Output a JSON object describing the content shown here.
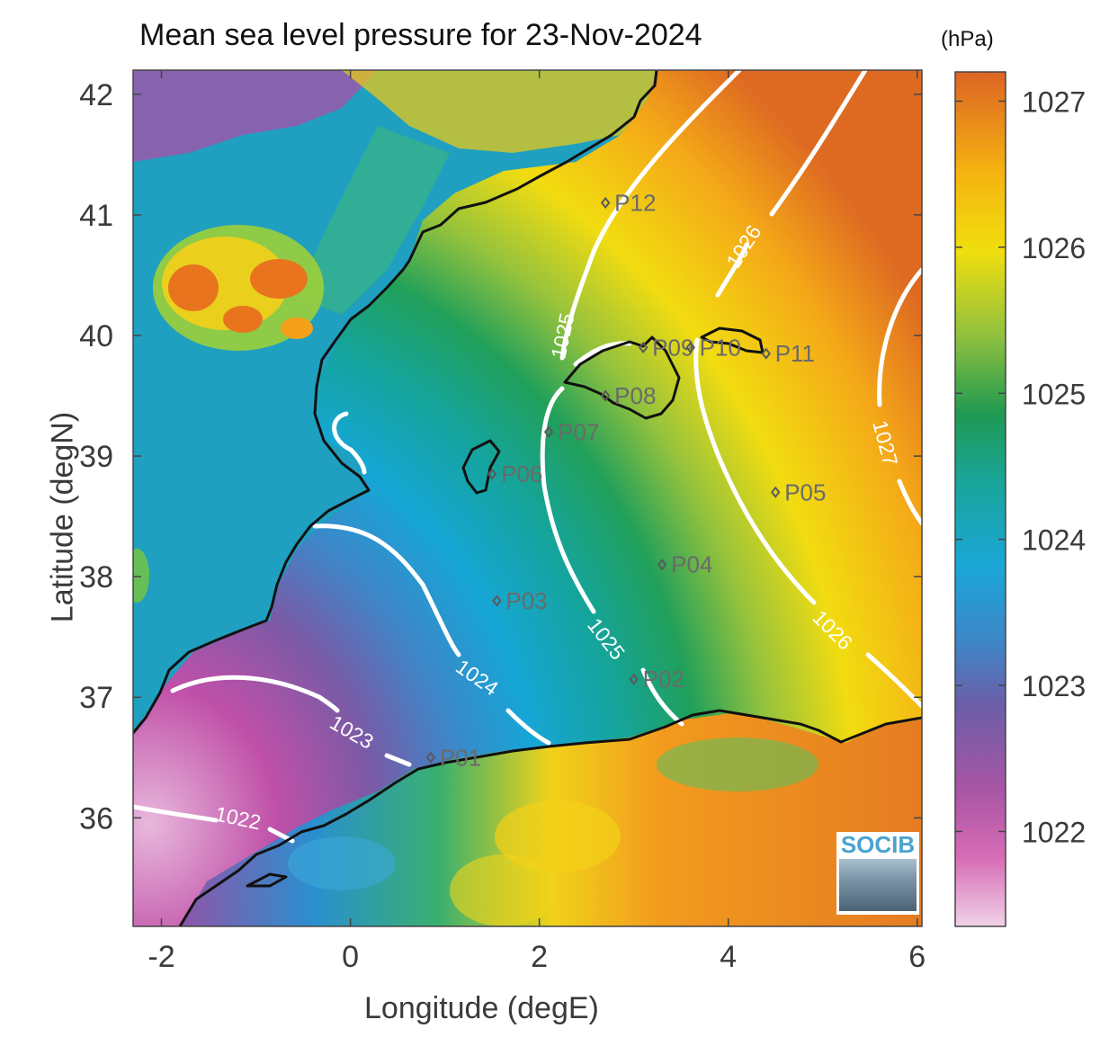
{
  "title": "Mean sea level pressure for 23-Nov-2024",
  "colorbar_unit": "(hPa)",
  "xlabel": "Longitude (degE)",
  "ylabel": "Latitude (degN)",
  "logo_text": "SOCIB",
  "chart_data": {
    "type": "map",
    "xlim": [
      -2.3,
      6.05
    ],
    "ylim": [
      35.1,
      42.2
    ],
    "x_ticks": [
      -2,
      0,
      2,
      4,
      6
    ],
    "y_ticks": [
      36,
      37,
      38,
      39,
      40,
      41,
      42
    ],
    "colorbar": {
      "range": [
        1021.35,
        1027.2
      ],
      "ticks": [
        1022,
        1023,
        1024,
        1025,
        1026,
        1027
      ],
      "colormap": [
        "#ecc8e4",
        "#c04fa8",
        "#7a5aa8",
        "#4a86c8",
        "#1ea7d8",
        "#1aa5a0",
        "#22a15a",
        "#9cc43a",
        "#f2dc10",
        "#f7c00c",
        "#f0901c",
        "#dc6420"
      ]
    },
    "contour_levels": [
      1022,
      1023,
      1024,
      1025,
      1026,
      1027
    ],
    "contour_label_positions": [
      {
        "level": "1022",
        "lon": -1.0,
        "lat": 35.93
      },
      {
        "level": "1023",
        "lon": 0.1,
        "lat": 36.7
      },
      {
        "level": "1024",
        "lon": 1.55,
        "lat": 37.2
      },
      {
        "level": "1025",
        "lon": 3.0,
        "lat": 37.6
      },
      {
        "level": "1025",
        "lon": 2.4,
        "lat": 40.0
      },
      {
        "level": "1026",
        "lon": 5.0,
        "lat": 37.55
      },
      {
        "level": "1026",
        "lon": 4.35,
        "lat": 40.8
      },
      {
        "level": "1027",
        "lon": 5.7,
        "lat": 38.95
      }
    ],
    "points": [
      {
        "name": "P01",
        "lon": 0.85,
        "lat": 36.5
      },
      {
        "name": "P02",
        "lon": 3.0,
        "lat": 37.15
      },
      {
        "name": "P03",
        "lon": 1.55,
        "lat": 37.8
      },
      {
        "name": "P04",
        "lon": 3.3,
        "lat": 38.1
      },
      {
        "name": "P05",
        "lon": 4.5,
        "lat": 38.7
      },
      {
        "name": "P06",
        "lon": 1.5,
        "lat": 38.85
      },
      {
        "name": "P07",
        "lon": 2.1,
        "lat": 39.2
      },
      {
        "name": "P08",
        "lon": 2.7,
        "lat": 39.5
      },
      {
        "name": "P09",
        "lon": 3.1,
        "lat": 39.9
      },
      {
        "name": "P10",
        "lon": 3.6,
        "lat": 39.9
      },
      {
        "name": "P11",
        "lon": 4.4,
        "lat": 39.85
      },
      {
        "name": "P12",
        "lon": 2.7,
        "lat": 41.1
      }
    ]
  }
}
